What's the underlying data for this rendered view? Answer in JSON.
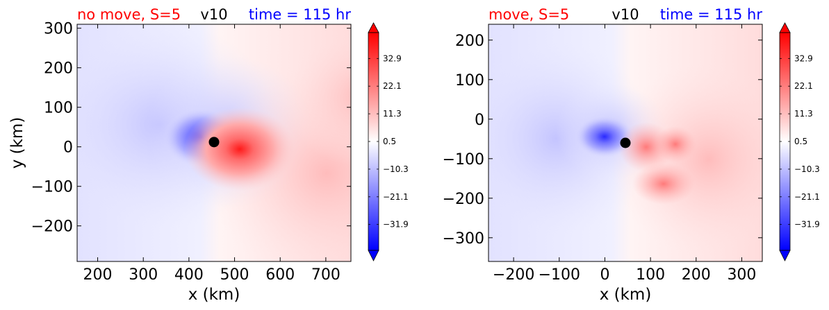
{
  "chart_data": [
    {
      "type": "contour",
      "title_left": "no move, S=5",
      "title_left_color": "#ff0000",
      "title_center": "v10",
      "title_center_color": "#000000",
      "title_right": "time = 115 hr",
      "title_right_color": "#0000ff",
      "xlabel": "x (km)",
      "ylabel": "y (km)",
      "xlim": [
        155,
        755
      ],
      "ylim": [
        -290,
        310
      ],
      "xticks": [
        200,
        300,
        400,
        500,
        600,
        700
      ],
      "yticks": [
        -200,
        -100,
        0,
        100,
        200,
        300
      ],
      "center_marker": {
        "x": 455,
        "y": 12
      },
      "colormap": "bwr",
      "colorbar_ticks": [
        "32.9",
        "22.1",
        "11.3",
        "0.5",
        "−10.3",
        "−21.1",
        "−31.9"
      ],
      "colorbar_range": [
        -42,
        43
      ]
    },
    {
      "type": "contour",
      "title_left": "move, S=5",
      "title_left_color": "#ff0000",
      "title_center": "v10",
      "title_center_color": "#000000",
      "title_right": "time = 115 hr",
      "title_right_color": "#0000ff",
      "xlabel": "x (km)",
      "ylabel": "",
      "xlim": [
        -255,
        345
      ],
      "ylim": [
        -360,
        240
      ],
      "xticks": [
        -200,
        -100,
        0,
        100,
        200,
        300
      ],
      "yticks": [
        -300,
        -200,
        -100,
        0,
        100,
        200
      ],
      "center_marker": {
        "x": 45,
        "y": -60
      },
      "colormap": "bwr",
      "colorbar_ticks": [
        "32.9",
        "22.1",
        "11.3",
        "0.5",
        "−10.3",
        "−21.1",
        "−31.9"
      ],
      "colorbar_range": [
        -42,
        43
      ]
    }
  ]
}
